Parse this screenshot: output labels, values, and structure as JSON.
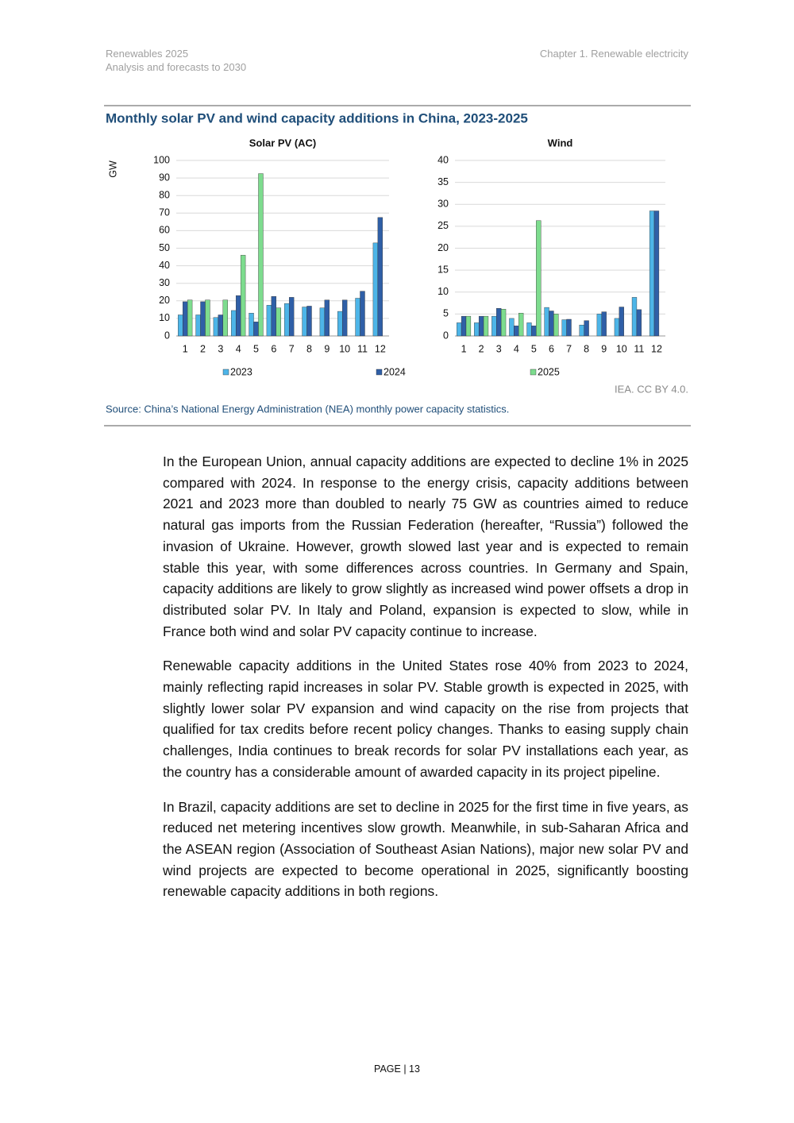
{
  "header": {
    "title": "Renewables 2025",
    "subtitle": "Analysis and forecasts to 2030",
    "chapter": "Chapter 1. Renewable electricity"
  },
  "figure": {
    "title": "Monthly solar PV and wind capacity additions in China, 2023-2025",
    "credit": "IEA. CC BY 4.0.",
    "source": "Source: China’s National Energy Administration (NEA) monthly power capacity statistics."
  },
  "chart_data": [
    {
      "type": "bar",
      "title": "Solar PV (AC)",
      "y_label": "GW",
      "categories": [
        "1",
        "2",
        "3",
        "4",
        "5",
        "6",
        "7",
        "8",
        "9",
        "10",
        "11",
        "12"
      ],
      "series": [
        {
          "name": "2023",
          "color": "#4db5e8",
          "values": [
            12,
            12,
            10.5,
            14.5,
            13,
            17.5,
            18.5,
            16.5,
            16,
            14,
            21.5,
            53
          ]
        },
        {
          "name": "2024",
          "color": "#2f5fa7",
          "values": [
            19.5,
            19.5,
            12,
            23,
            8,
            22.5,
            22,
            17,
            20.5,
            20.5,
            25.5,
            67.5
          ]
        },
        {
          "name": "2025",
          "color": "#7ddc8e",
          "values": [
            20.5,
            20.5,
            20.5,
            46,
            92.5,
            16,
            null,
            null,
            null,
            null,
            null,
            null
          ]
        }
      ],
      "ylim": [
        0,
        100
      ],
      "yticks": [
        0,
        10,
        20,
        30,
        40,
        50,
        60,
        70,
        80,
        90,
        100
      ],
      "grid": true
    },
    {
      "type": "bar",
      "title": "Wind",
      "categories": [
        "1",
        "2",
        "3",
        "4",
        "5",
        "6",
        "7",
        "8",
        "9",
        "10",
        "11",
        "12"
      ],
      "series": [
        {
          "color": "#4db5e8",
          "values": [
            3,
            3,
            4.5,
            4,
            3,
            6.5,
            3.7,
            2.5,
            5,
            4,
            8.8,
            28.5
          ]
        },
        {
          "color": "#2f5fa7",
          "values": [
            4.5,
            4.5,
            6.3,
            2.3,
            2.3,
            5.7,
            3.8,
            3.5,
            5.5,
            6.6,
            6,
            28.5
          ]
        },
        {
          "color": "#7ddc8e",
          "values": [
            4.5,
            4.5,
            6.1,
            5.2,
            26.3,
            5,
            null,
            null,
            null,
            null,
            null,
            null
          ]
        }
      ],
      "ylim": [
        0,
        40
      ],
      "yticks": [
        0,
        5,
        10,
        15,
        20,
        25,
        30,
        35,
        40
      ],
      "grid": true
    }
  ],
  "paragraphs": [
    "In the European Union, annual capacity additions are expected to decline 1% in 2025 compared with 2024. In response to the energy crisis, capacity additions between 2021 and 2023 more than doubled to nearly 75 GW as countries aimed to reduce natural gas imports from the Russian Federation (hereafter, “Russia”) followed the invasion of Ukraine. However, growth slowed last year and is expected to remain stable this year, with some differences across countries. In Germany and Spain, capacity additions are likely to grow slightly as increased wind power offsets a drop in distributed solar PV. In Italy and Poland, expansion is expected to slow, while in France both wind and solar PV capacity continue to increase.",
    "Renewable capacity additions in the United States rose 40% from 2023 to 2024, mainly reflecting rapid increases in solar PV. Stable growth is expected in 2025, with slightly lower solar PV expansion and wind capacity on the rise from projects that qualified for tax credits before recent policy changes. Thanks to easing supply chain challenges, India continues to break records for solar PV installations each year, as the country has a considerable amount of awarded capacity in its project pipeline.",
    "In Brazil, capacity additions are set to decline in 2025 for the first time in five years, as reduced net metering incentives slow growth. Meanwhile, in sub-Saharan Africa and the ASEAN region (Association of Southeast Asian Nations), major new solar PV and wind projects are expected to become operational in 2025, significantly boosting renewable capacity additions in both regions."
  ],
  "footer": {
    "page": "PAGE | 13"
  }
}
